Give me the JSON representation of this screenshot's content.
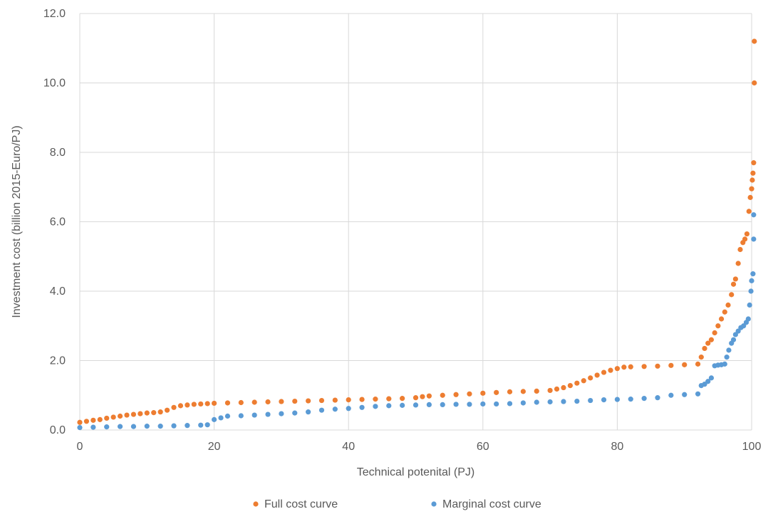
{
  "chart_data": {
    "type": "scatter",
    "title": "",
    "xlabel": "Technical potenital (PJ)",
    "ylabel": "Investment cost (billion 2015-Euro/PJ)",
    "xlim": [
      0,
      100
    ],
    "ylim": [
      0,
      12
    ],
    "grid": true,
    "legend_position": "bottom",
    "x_ticks": [
      "0",
      "20",
      "40",
      "60",
      "80",
      "100"
    ],
    "y_ticks": [
      "0.0",
      "2.0",
      "4.0",
      "6.0",
      "8.0",
      "10.0",
      "12.0"
    ],
    "series": [
      {
        "name": "Full cost curve",
        "color": "#ed7d31",
        "points": [
          [
            0,
            0.22
          ],
          [
            1,
            0.25
          ],
          [
            2,
            0.28
          ],
          [
            3,
            0.3
          ],
          [
            4,
            0.34
          ],
          [
            5,
            0.37
          ],
          [
            6,
            0.4
          ],
          [
            7,
            0.43
          ],
          [
            8,
            0.45
          ],
          [
            9,
            0.47
          ],
          [
            10,
            0.49
          ],
          [
            11,
            0.5
          ],
          [
            12,
            0.52
          ],
          [
            13,
            0.57
          ],
          [
            14,
            0.65
          ],
          [
            15,
            0.7
          ],
          [
            16,
            0.72
          ],
          [
            17,
            0.74
          ],
          [
            18,
            0.75
          ],
          [
            19,
            0.76
          ],
          [
            20,
            0.77
          ],
          [
            22,
            0.78
          ],
          [
            24,
            0.79
          ],
          [
            26,
            0.8
          ],
          [
            28,
            0.81
          ],
          [
            30,
            0.82
          ],
          [
            32,
            0.83
          ],
          [
            34,
            0.84
          ],
          [
            36,
            0.85
          ],
          [
            38,
            0.86
          ],
          [
            40,
            0.87
          ],
          [
            42,
            0.88
          ],
          [
            44,
            0.89
          ],
          [
            46,
            0.9
          ],
          [
            48,
            0.91
          ],
          [
            50,
            0.93
          ],
          [
            51,
            0.96
          ],
          [
            52,
            0.98
          ],
          [
            54,
            1.0
          ],
          [
            56,
            1.02
          ],
          [
            58,
            1.04
          ],
          [
            60,
            1.06
          ],
          [
            62,
            1.08
          ],
          [
            64,
            1.1
          ],
          [
            66,
            1.11
          ],
          [
            68,
            1.12
          ],
          [
            70,
            1.14
          ],
          [
            71,
            1.18
          ],
          [
            72,
            1.22
          ],
          [
            73,
            1.28
          ],
          [
            74,
            1.35
          ],
          [
            75,
            1.42
          ],
          [
            76,
            1.5
          ],
          [
            77,
            1.58
          ],
          [
            78,
            1.66
          ],
          [
            79,
            1.72
          ],
          [
            80,
            1.77
          ],
          [
            81,
            1.81
          ],
          [
            82,
            1.82
          ],
          [
            84,
            1.83
          ],
          [
            86,
            1.84
          ],
          [
            88,
            1.86
          ],
          [
            90,
            1.88
          ],
          [
            92,
            1.9
          ],
          [
            92.5,
            2.1
          ],
          [
            93,
            2.35
          ],
          [
            93.5,
            2.5
          ],
          [
            94,
            2.6
          ],
          [
            94.5,
            2.8
          ],
          [
            95,
            3.0
          ],
          [
            95.5,
            3.2
          ],
          [
            96,
            3.4
          ],
          [
            96.5,
            3.6
          ],
          [
            97,
            3.9
          ],
          [
            97.3,
            4.2
          ],
          [
            97.6,
            4.35
          ],
          [
            98,
            4.8
          ],
          [
            98.3,
            5.2
          ],
          [
            98.7,
            5.4
          ],
          [
            99,
            5.5
          ],
          [
            99.3,
            5.65
          ],
          [
            99.6,
            6.3
          ],
          [
            99.8,
            6.7
          ],
          [
            100,
            6.95
          ],
          [
            100.1,
            7.2
          ],
          [
            100.2,
            7.4
          ],
          [
            100.3,
            7.7
          ],
          [
            100.4,
            10.0
          ],
          [
            100.4,
            11.2
          ]
        ]
      },
      {
        "name": "Marginal cost curve",
        "color": "#5b9bd5",
        "points": [
          [
            0,
            0.07
          ],
          [
            2,
            0.08
          ],
          [
            4,
            0.09
          ],
          [
            6,
            0.1
          ],
          [
            8,
            0.1
          ],
          [
            10,
            0.11
          ],
          [
            12,
            0.11
          ],
          [
            14,
            0.12
          ],
          [
            16,
            0.13
          ],
          [
            18,
            0.14
          ],
          [
            19,
            0.15
          ],
          [
            20,
            0.3
          ],
          [
            21,
            0.35
          ],
          [
            22,
            0.4
          ],
          [
            24,
            0.41
          ],
          [
            26,
            0.43
          ],
          [
            28,
            0.45
          ],
          [
            30,
            0.47
          ],
          [
            32,
            0.49
          ],
          [
            34,
            0.52
          ],
          [
            36,
            0.57
          ],
          [
            38,
            0.6
          ],
          [
            40,
            0.62
          ],
          [
            42,
            0.65
          ],
          [
            44,
            0.68
          ],
          [
            46,
            0.7
          ],
          [
            48,
            0.71
          ],
          [
            50,
            0.72
          ],
          [
            52,
            0.73
          ],
          [
            54,
            0.73
          ],
          [
            56,
            0.74
          ],
          [
            58,
            0.74
          ],
          [
            60,
            0.75
          ],
          [
            62,
            0.75
          ],
          [
            64,
            0.76
          ],
          [
            66,
            0.78
          ],
          [
            68,
            0.8
          ],
          [
            70,
            0.81
          ],
          [
            72,
            0.82
          ],
          [
            74,
            0.83
          ],
          [
            76,
            0.85
          ],
          [
            78,
            0.87
          ],
          [
            80,
            0.88
          ],
          [
            82,
            0.89
          ],
          [
            84,
            0.91
          ],
          [
            86,
            0.93
          ],
          [
            88,
            1.0
          ],
          [
            90,
            1.02
          ],
          [
            92,
            1.04
          ],
          [
            92.5,
            1.28
          ],
          [
            93,
            1.32
          ],
          [
            93.5,
            1.4
          ],
          [
            94,
            1.5
          ],
          [
            94.5,
            1.85
          ],
          [
            95,
            1.87
          ],
          [
            95.5,
            1.88
          ],
          [
            96,
            1.9
          ],
          [
            96.3,
            2.1
          ],
          [
            96.6,
            2.3
          ],
          [
            97,
            2.5
          ],
          [
            97.3,
            2.6
          ],
          [
            97.6,
            2.75
          ],
          [
            98,
            2.85
          ],
          [
            98.4,
            2.95
          ],
          [
            98.8,
            3.0
          ],
          [
            99.2,
            3.1
          ],
          [
            99.5,
            3.2
          ],
          [
            99.7,
            3.6
          ],
          [
            99.9,
            4.0
          ],
          [
            100,
            4.3
          ],
          [
            100.2,
            4.5
          ],
          [
            100.3,
            5.5
          ],
          [
            100.3,
            6.2
          ]
        ]
      }
    ]
  }
}
